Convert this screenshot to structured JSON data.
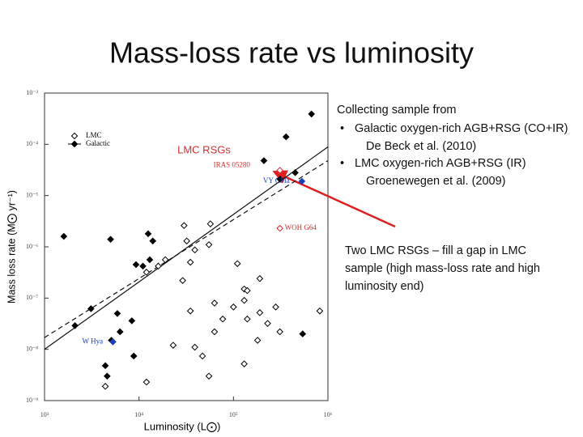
{
  "slide": {
    "title": "Mass-loss rate vs luminosity",
    "sample_heading": "Collecting sample from",
    "bullets": [
      {
        "text": "Galactic oxygen-rich AGB+RSG (CO+IR)",
        "source": "De Beck et al. (2010)"
      },
      {
        "text": "LMC oxygen-rich AGB+RSG (IR)",
        "source": "Groenewegen et al. (2009)"
      }
    ],
    "note": [
      "Two LMC RSGs – fill a gap in LMC",
      "sample (high mass-loss rate and high",
      "luminosity end)"
    ]
  },
  "chart_data": {
    "type": "scatter",
    "x_label": "Luminosity (L⨀)",
    "y_label": "Mass loss rate (M⨀ yr⁻¹)",
    "annotation": {
      "text": "LMC RSGs",
      "color": "#d32f2f"
    },
    "xscale": "log",
    "yscale": "log",
    "xlim": [
      1000,
      1000000
    ],
    "ylim": [
      1e-09,
      0.001
    ],
    "xticks": [
      {
        "value": 1000,
        "label": "10³"
      },
      {
        "value": 10000,
        "label": "10⁴"
      },
      {
        "value": 100000,
        "label": "10⁵"
      },
      {
        "value": 1000000,
        "label": "10⁶"
      }
    ],
    "yticks": [
      {
        "value": 1e-09,
        "label": "10⁻⁹"
      },
      {
        "value": 1e-08,
        "label": "10⁻⁸"
      },
      {
        "value": 1e-07,
        "label": "10⁻⁷"
      },
      {
        "value": 1e-06,
        "label": "10⁻⁶"
      },
      {
        "value": 1e-05,
        "label": "10⁻⁵"
      },
      {
        "value": 0.0001,
        "label": "10⁻⁴"
      },
      {
        "value": 0.001,
        "label": "10⁻³"
      }
    ],
    "legend": "upper left",
    "series": [
      {
        "name": "LMC",
        "color": "#000000",
        "marker": "open",
        "x": [
          30000,
          57000,
          55000,
          39000,
          32000,
          19000,
          16000,
          12000,
          35000,
          110000,
          29000,
          130000,
          190000,
          63000,
          130000,
          280000,
          820000,
          35000,
          140000,
          230000,
          310000,
          63000,
          39000,
          47000,
          130000,
          180000,
          12000,
          55000,
          4400,
          23000,
          190000,
          100000,
          77000,
          140000
        ],
        "values": [
          2.6e-06,
          2.8e-06,
          1.1e-06,
          8.7e-07,
          1.3e-06,
          5.6e-07,
          4.2e-07,
          3.2e-07,
          5e-07,
          4.7e-07,
          2.2e-07,
          1.5e-07,
          2.4e-07,
          8e-08,
          9e-08,
          6.7e-08,
          5.6e-08,
          5.6e-08,
          3.9e-08,
          3.2e-08,
          2.2e-08,
          2.2e-08,
          1.1e-08,
          7.4e-09,
          5.2e-09,
          1.5e-08,
          2.3e-09,
          3e-09,
          1.9e-09,
          1.2e-08,
          5.2e-08,
          6.7e-08,
          3.9e-08,
          1.4e-07
        ]
      },
      {
        "name": "Galactic",
        "color": "#000000",
        "marker": "filled",
        "x": [
          670000,
          360000,
          210000,
          450000,
          310000,
          1600,
          5000,
          12500,
          14000,
          9300,
          13000,
          11000,
          3100,
          2100,
          5900,
          8400,
          6300,
          5100,
          8800,
          4400,
          4600,
          540000
        ],
        "values": [
          0.00039,
          0.00014,
          4.8e-05,
          2.8e-05,
          2.1e-05,
          1.6e-06,
          1.4e-06,
          1.8e-06,
          1.3e-06,
          4.5e-07,
          5.6e-07,
          4.2e-07,
          6.2e-08,
          2.9e-08,
          5e-08,
          3.6e-08,
          2.2e-08,
          1.5e-08,
          7.4e-09,
          4.8e-09,
          3e-09,
          2e-08
        ]
      }
    ],
    "highlights": [
      {
        "label": "IRAS 05280",
        "x": 310000,
        "y": 3.1e-05,
        "color": "#d32f2f",
        "marker": "open"
      },
      {
        "label": "WOH G64",
        "x": 310000,
        "y": 2.3e-06,
        "color": "#d32f2f",
        "marker": "open"
      },
      {
        "label": "VY CMa",
        "x": 530000,
        "y": 1.9e-05,
        "color": "#1a3fb8",
        "marker": "filled"
      },
      {
        "label": "W Hya",
        "x": 5300,
        "y": 1.4e-08,
        "color": "#1a3fb8",
        "marker": "filled"
      }
    ],
    "fit_lines": [
      {
        "style": "solid",
        "x": [
          1000,
          1000000
        ],
        "values": [
          1e-08,
          8.9e-05
        ]
      },
      {
        "style": "dashed",
        "x": [
          1000,
          1000000
        ],
        "values": [
          1.7e-08,
          4.8e-05
        ]
      }
    ]
  }
}
